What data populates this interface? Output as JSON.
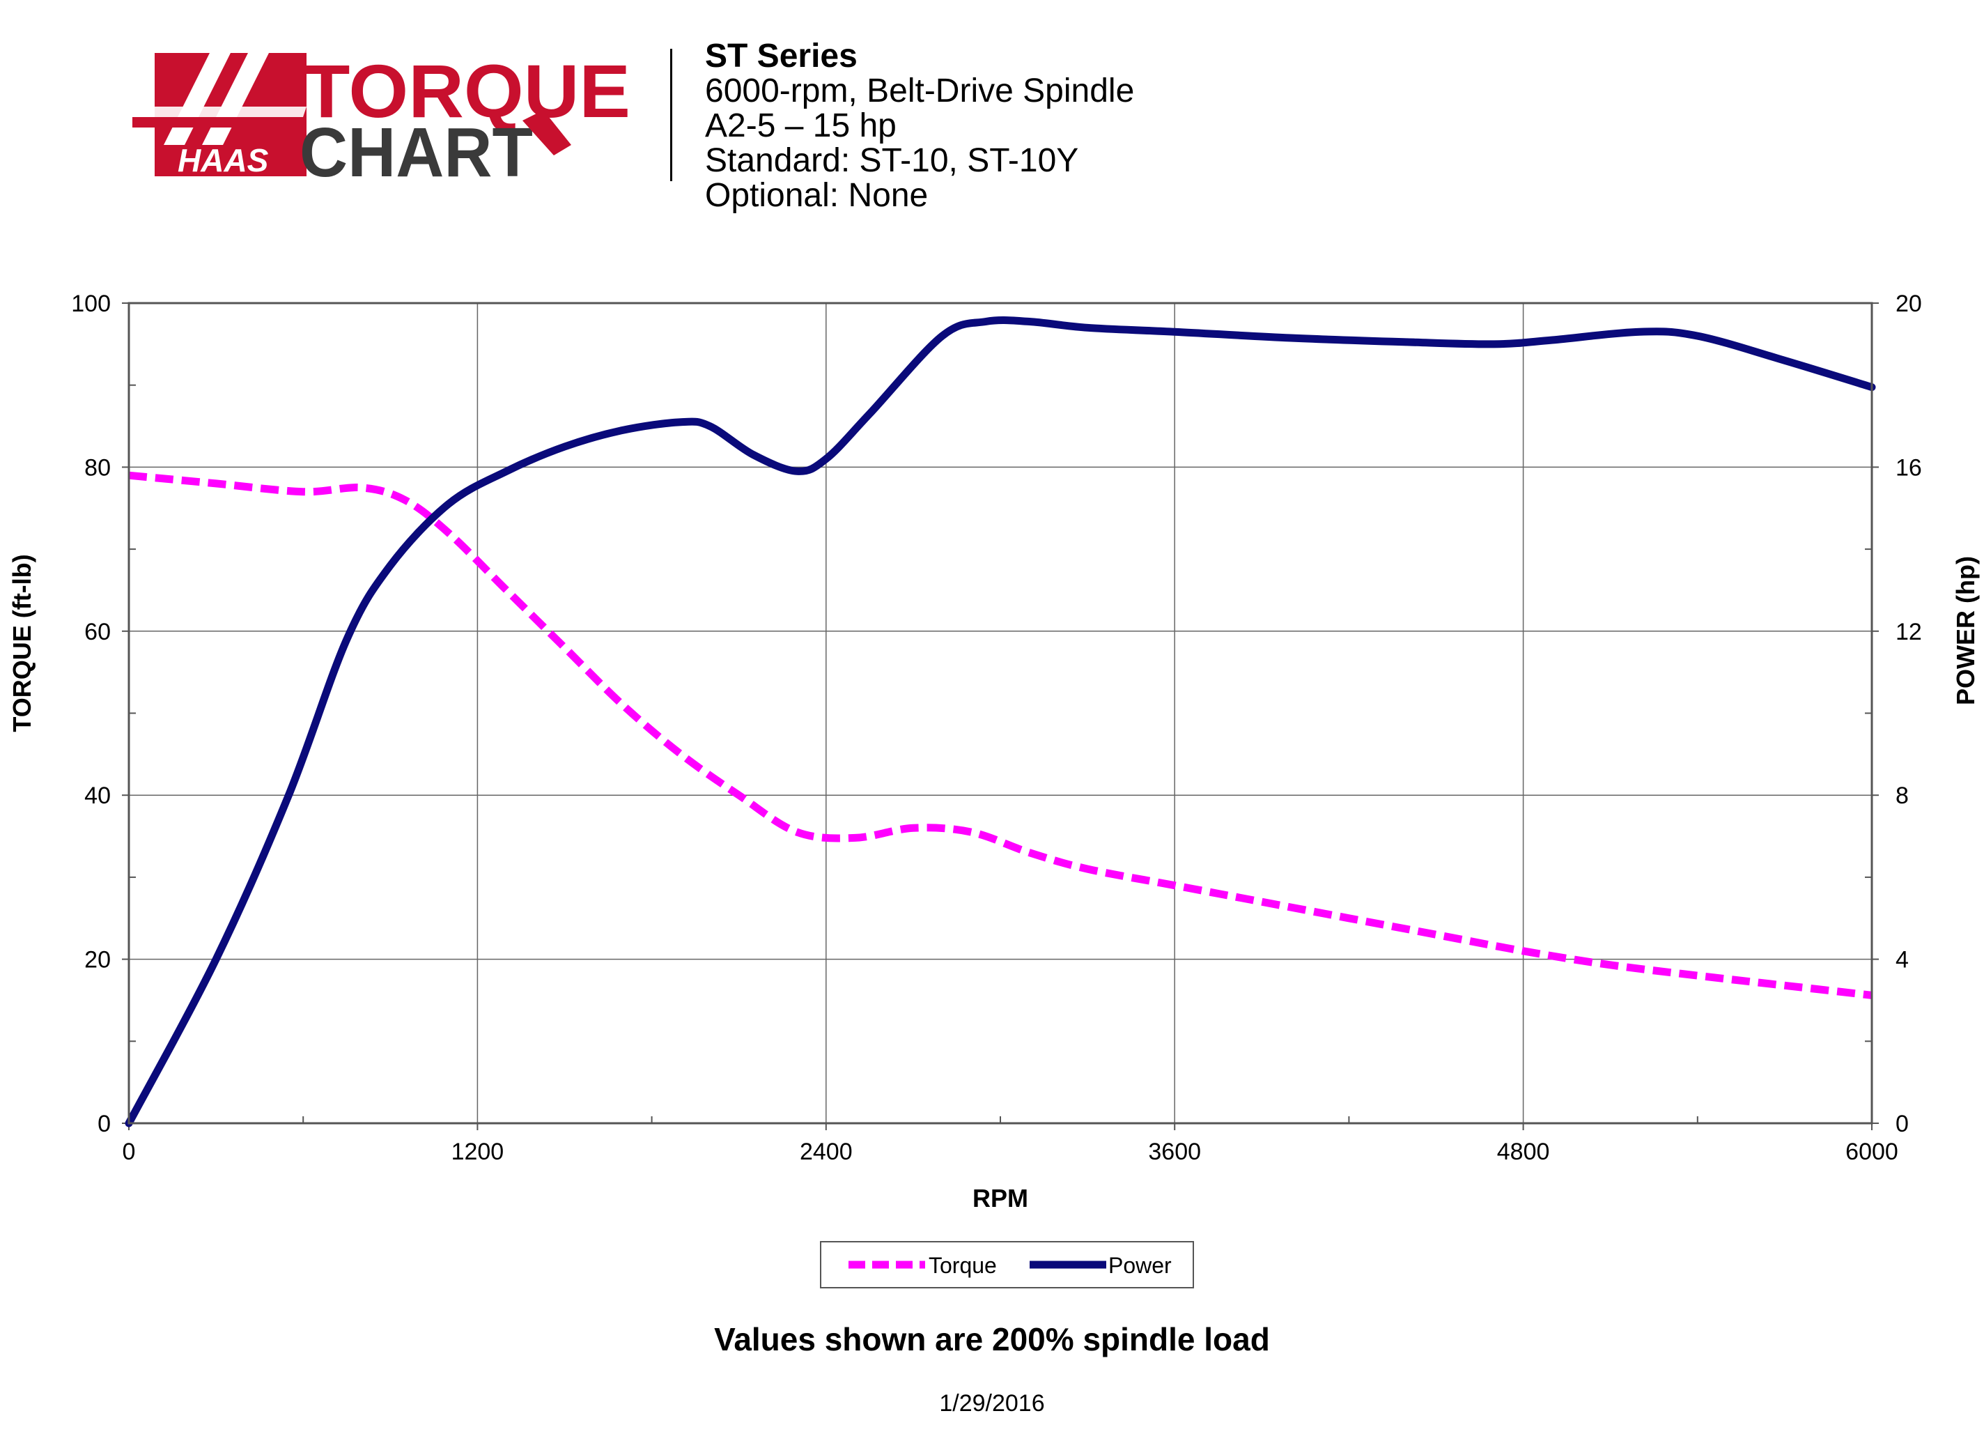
{
  "logo": {
    "brand_text": "HAAS",
    "word1": "TORQUE",
    "word2": "CHART",
    "red": "#c8102e",
    "dark": "#3a3a3a"
  },
  "header": {
    "title": "ST Series",
    "line1": "6000-rpm, Belt-Drive Spindle",
    "line2": "A2-5 – 15 hp",
    "line3": "Standard: ST-10, ST-10Y",
    "line4": "Optional: None"
  },
  "chart_data": {
    "type": "line",
    "xlabel": "RPM",
    "ylabel": "TORQUE (ft-lb)",
    "y2label": "POWER (hp)",
    "xlim": [
      0,
      6000
    ],
    "ylim": [
      0,
      100
    ],
    "y2lim": [
      0,
      20
    ],
    "x_ticks": [
      "0",
      "1200",
      "2400",
      "3600",
      "4800",
      "6000"
    ],
    "y_ticks": [
      "0",
      "20",
      "40",
      "60",
      "80",
      "100"
    ],
    "y2_ticks": [
      "0",
      "4",
      "8",
      "12",
      "16",
      "20"
    ],
    "grid": true,
    "legend_position": "bottom-center",
    "series": [
      {
        "name": "Torque",
        "axis": "left",
        "color": "#ff00ff",
        "style": "dashed",
        "x": [
          0,
          300,
          600,
          800,
          950,
          1100,
          1300,
          1500,
          1700,
          1900,
          2100,
          2300,
          2500,
          2700,
          2900,
          3100,
          3300,
          3600,
          3900,
          4200,
          4500,
          4800,
          5100,
          5400,
          5700,
          6000
        ],
        "y": [
          79,
          78,
          77,
          77.5,
          76,
          72,
          65,
          58,
          51,
          45,
          40,
          35.5,
          34.8,
          36,
          35.5,
          33,
          31,
          29,
          27,
          25,
          23,
          21,
          19.3,
          18,
          16.8,
          15.6
        ]
      },
      {
        "name": "Power",
        "axis": "right",
        "color": "#0a0a7a",
        "style": "solid",
        "x": [
          0,
          300,
          550,
          750,
          900,
          1100,
          1300,
          1500,
          1700,
          1900,
          2000,
          2150,
          2300,
          2400,
          2550,
          2800,
          2950,
          3100,
          3300,
          3600,
          4000,
          4400,
          4700,
          4900,
          5200,
          5400,
          5700,
          6000
        ],
        "y": [
          0,
          4,
          8,
          11.8,
          13.6,
          15.1,
          15.9,
          16.5,
          16.9,
          17.1,
          17,
          16.3,
          15.9,
          16.2,
          17.3,
          19.2,
          19.55,
          19.55,
          19.4,
          19.3,
          19.15,
          19.05,
          19,
          19.1,
          19.3,
          19.2,
          18.6,
          17.95
        ]
      }
    ]
  },
  "footer": {
    "note": "Values shown are 200% spindle load",
    "date": "1/29/2016"
  }
}
